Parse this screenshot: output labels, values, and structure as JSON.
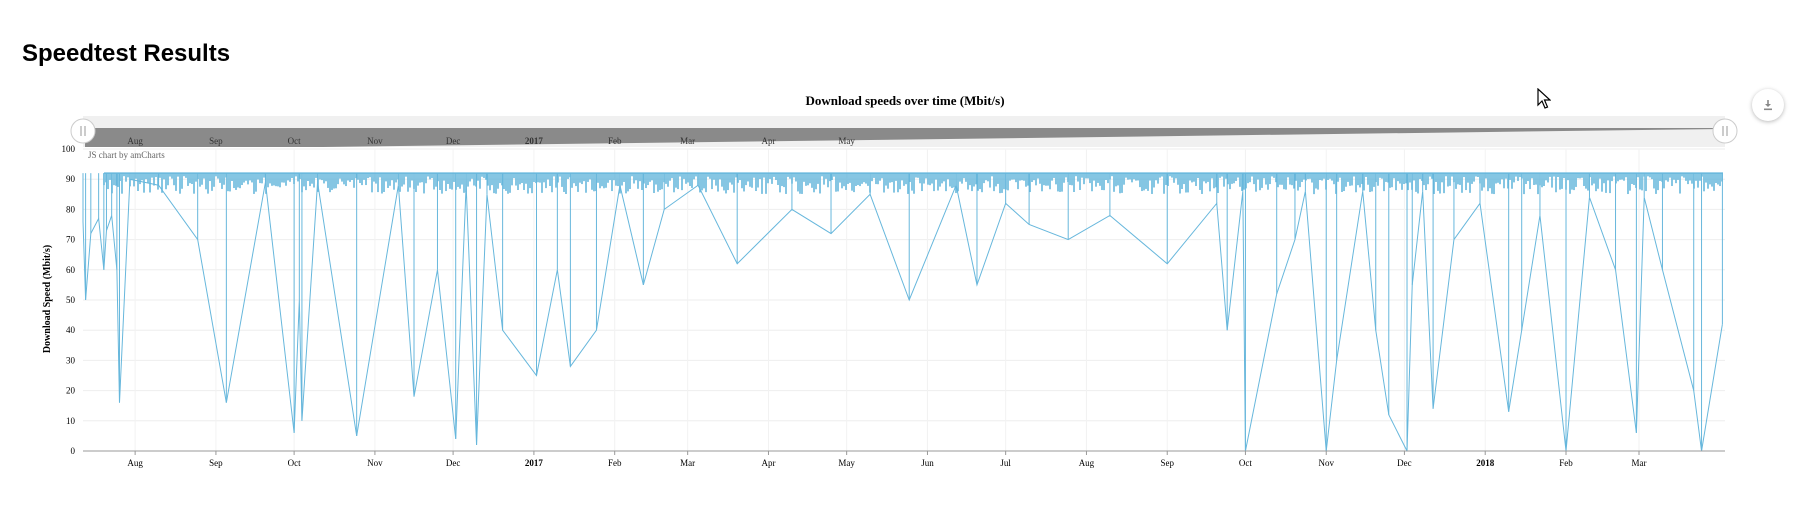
{
  "page": {
    "title": "Speedtest Results"
  },
  "chart_data": {
    "type": "line",
    "title": "Download speeds over time (Mbit/s)",
    "xlabel": "",
    "ylabel": "Download Speed (Mbit/s)",
    "credit": "JS chart by amCharts",
    "ylim": [
      0,
      100
    ],
    "y_ticks": [
      0,
      10,
      20,
      30,
      40,
      50,
      60,
      70,
      80,
      90,
      100
    ],
    "xlim": [
      "2016-07-12",
      "2018-04-03"
    ],
    "x_ticks": [
      {
        "date": "2016-08-01",
        "label": "Aug",
        "bold": false
      },
      {
        "date": "2016-09-01",
        "label": "Sep",
        "bold": false
      },
      {
        "date": "2016-10-01",
        "label": "Oct",
        "bold": false
      },
      {
        "date": "2016-11-01",
        "label": "Nov",
        "bold": false
      },
      {
        "date": "2016-12-01",
        "label": "Dec",
        "bold": false
      },
      {
        "date": "2017-01-01",
        "label": "2017",
        "bold": true
      },
      {
        "date": "2017-02-01",
        "label": "Feb",
        "bold": false
      },
      {
        "date": "2017-03-01",
        "label": "Mar",
        "bold": false
      },
      {
        "date": "2017-04-01",
        "label": "Apr",
        "bold": false
      },
      {
        "date": "2017-05-01",
        "label": "May",
        "bold": false
      },
      {
        "date": "2017-06-01",
        "label": "Jun",
        "bold": false
      },
      {
        "date": "2017-07-01",
        "label": "Jul",
        "bold": false
      },
      {
        "date": "2017-08-01",
        "label": "Aug",
        "bold": false
      },
      {
        "date": "2017-09-01",
        "label": "Sep",
        "bold": false
      },
      {
        "date": "2017-10-01",
        "label": "Oct",
        "bold": false
      },
      {
        "date": "2017-11-01",
        "label": "Nov",
        "bold": false
      },
      {
        "date": "2017-12-01",
        "label": "Dec",
        "bold": false
      },
      {
        "date": "2018-01-01",
        "label": "2018",
        "bold": true
      },
      {
        "date": "2018-02-01",
        "label": "Feb",
        "bold": false
      },
      {
        "date": "2018-03-01",
        "label": "Mar",
        "bold": false
      }
    ],
    "scrollbar_labels": [
      "Aug",
      "Sep",
      "Oct",
      "Nov",
      "Dec",
      "2017",
      "Feb",
      "Mar",
      "Apr",
      "May"
    ],
    "series": [
      {
        "name": "",
        "color": "#67b7dc",
        "baseline": 92,
        "x": [
          "2016-07-12",
          "2016-07-13",
          "2016-07-15",
          "2016-07-18",
          "2016-07-20",
          "2016-07-21",
          "2016-07-23",
          "2016-07-25",
          "2016-07-26",
          "2016-07-30",
          "2016-08-10",
          "2016-08-25",
          "2016-09-05",
          "2016-09-20",
          "2016-10-01",
          "2016-10-03",
          "2016-10-04",
          "2016-10-10",
          "2016-10-25",
          "2016-11-10",
          "2016-11-16",
          "2016-11-25",
          "2016-12-02",
          "2016-12-06",
          "2016-12-10",
          "2016-12-14",
          "2016-12-20",
          "2017-01-02",
          "2017-01-10",
          "2017-01-15",
          "2017-01-25",
          "2017-02-03",
          "2017-02-12",
          "2017-02-20",
          "2017-03-05",
          "2017-03-20",
          "2017-04-10",
          "2017-04-25",
          "2017-05-10",
          "2017-05-25",
          "2017-06-12",
          "2017-06-20",
          "2017-07-01",
          "2017-07-10",
          "2017-07-25",
          "2017-08-10",
          "2017-09-01",
          "2017-09-20",
          "2017-09-24",
          "2017-09-30",
          "2017-10-01",
          "2017-10-13",
          "2017-10-20",
          "2017-10-24",
          "2017-11-01",
          "2017-11-05",
          "2017-11-15",
          "2017-11-20",
          "2017-11-25",
          "2017-12-02",
          "2017-12-04",
          "2017-12-08",
          "2017-12-12",
          "2017-12-20",
          "2017-12-30",
          "2018-01-10",
          "2018-01-15",
          "2018-01-22",
          "2018-02-01",
          "2018-02-10",
          "2018-02-20",
          "2018-02-28",
          "2018-03-03",
          "2018-03-10",
          "2018-03-22",
          "2018-03-25",
          "2018-04-02"
        ],
        "y": [
          76,
          50,
          72,
          77,
          60,
          73,
          78,
          60,
          16,
          90,
          88,
          70,
          16,
          89,
          6,
          50,
          10,
          89,
          5,
          88,
          18,
          60,
          4,
          88,
          2,
          85,
          40,
          25,
          60,
          28,
          40,
          88,
          55,
          80,
          88,
          62,
          80,
          72,
          85,
          50,
          88,
          55,
          82,
          75,
          70,
          78,
          62,
          82,
          40,
          86,
          0,
          52,
          70,
          86,
          0,
          30,
          86,
          40,
          12,
          0,
          55,
          86,
          14,
          70,
          82,
          13,
          40,
          78,
          0,
          84,
          60,
          6,
          84,
          60,
          20,
          0,
          42
        ]
      }
    ]
  },
  "icons": {
    "export": "download-icon",
    "cursor": "mouse-pointer-icon"
  }
}
